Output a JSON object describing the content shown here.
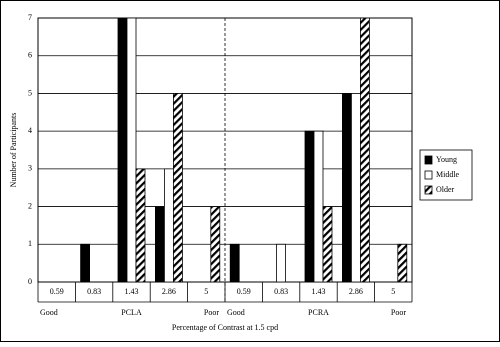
{
  "chart_data": {
    "type": "bar",
    "x_label": "Percentage of Contrast at 1.5 cpd",
    "y_label": "Number of Participants",
    "categories": [
      "0.59",
      "0.83",
      "1.43",
      "2.86",
      "5",
      "0.59",
      "0.83",
      "1.43",
      "2.86",
      "5"
    ],
    "annotations": [
      "Good",
      "PCLA",
      "Poor",
      "Good",
      "PCRA",
      "Poor"
    ],
    "series": [
      {
        "name": "Young",
        "color": "#000000",
        "values": [
          0,
          1,
          7,
          2,
          0,
          1,
          0,
          4,
          5,
          0
        ]
      },
      {
        "name": "Middle",
        "color": "#ffffff",
        "values": [
          0,
          0,
          7,
          3,
          0,
          0,
          1,
          4,
          5,
          0
        ]
      },
      {
        "name": "Older",
        "color": "#000000",
        "hatch": true,
        "values": [
          0,
          0,
          3,
          5,
          2,
          0,
          0,
          2,
          7,
          1
        ]
      }
    ],
    "ylim": [
      0,
      7
    ],
    "yticks": [
      0,
      1,
      2,
      3,
      4,
      5,
      6,
      7
    ],
    "grid": true,
    "legend": "right"
  }
}
